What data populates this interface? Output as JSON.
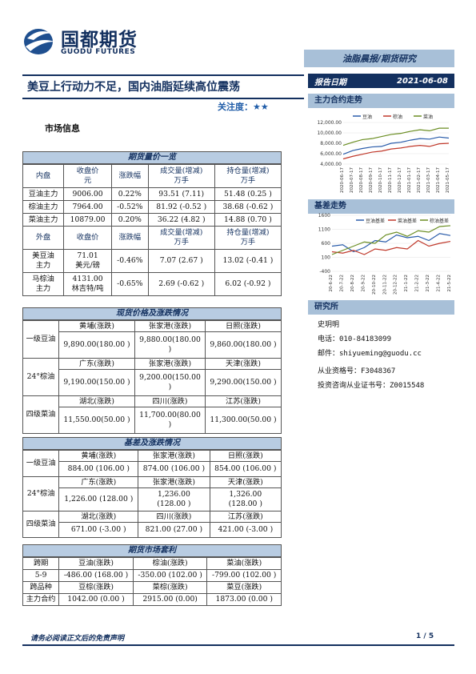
{
  "header": {
    "logo_cn": "国都期货",
    "logo_en": "GUODU FUTURES",
    "report_type": "油脂晨报/期货研究",
    "date_label": "报告日期",
    "date": "2021-06-08",
    "title": "美豆上行动力不足，国内油脂延续高位震荡",
    "attention": "关注度：★★"
  },
  "section": "市场信息",
  "futures": {
    "title": "期货量价一览",
    "head1": [
      "内盘",
      "收盘价\n元",
      "涨跌幅",
      "成交量(增减)\n万手",
      "持仓量(增减)\n万手"
    ],
    "rows1": [
      [
        "豆油主力",
        "9006.00",
        "0.22%",
        "93.51 (7.11)",
        "51.48 (0.25 )"
      ],
      [
        "棕油主力",
        "7964.00",
        "-0.52%",
        "81.92 (-0.52 )",
        "38.68 (-0.62 )"
      ],
      [
        "菜油主力",
        "10879.00",
        "0.20%",
        "36.22 (4.82 )",
        "14.88 (0.70 )"
      ]
    ],
    "head2": [
      "外盘",
      "收盘价",
      "涨跌幅",
      "成交量(增减)\n万手",
      "持仓量(增减)\n万手"
    ],
    "rows2": [
      [
        "美豆油\n主力",
        "71.01\n美元/磅",
        "-0.46%",
        "7.07 (2.67 )",
        "13.02 (-0.41 )"
      ],
      [
        "马棕油\n主力",
        "4131.00\n林吉特/吨",
        "-0.65%",
        "2.69 (-0.62 )",
        "6.02 (-0.92 )"
      ]
    ]
  },
  "spot": {
    "title": "现货价格及涨跌情况",
    "groups": [
      {
        "name": "一级豆油",
        "regions": [
          "黄埔(涨跌)",
          "张家港(涨跌)",
          "日照(涨跌)"
        ],
        "values": [
          "9,890.00(180.00 )",
          "9,880.00(180.00\n)",
          "9,860.00(180.00 )"
        ]
      },
      {
        "name": "24°棕油",
        "regions": [
          "广东(涨跌)",
          "张家港(涨跌)",
          "天津(涨跌)"
        ],
        "values": [
          "9,190.00(150.00 )",
          "9,200.00(150.00\n)",
          "9,290.00(150.00 )"
        ]
      },
      {
        "name": "四级菜油",
        "regions": [
          "湖北(涨跌)",
          "四川(涨跌)",
          "江苏(涨跌)"
        ],
        "values": [
          "11,550.00(50.00 )",
          "11,700.00(80.00\n)",
          "11,300.00(50.00 )"
        ]
      }
    ]
  },
  "basis": {
    "title": "基差及涨跌情况",
    "groups": [
      {
        "name": "一级豆油",
        "regions": [
          "黄埔(涨跌)",
          "张家港(涨跌)",
          "日照(涨跌)"
        ],
        "values": [
          "884.00 (106.00 )",
          "874.00 (106.00 )",
          "854.00 (106.00 )"
        ]
      },
      {
        "name": "24°棕油",
        "regions": [
          "广东(涨跌)",
          "张家港(涨跌)",
          "天津(涨跌)"
        ],
        "values": [
          "1,226.00 (128.00 )",
          "1,236.00\n(128.00 )",
          "1,326.00\n(128.00 )"
        ]
      },
      {
        "name": "四级菜油",
        "regions": [
          "湖北(涨跌)",
          "四川(涨跌)",
          "江苏(涨跌)"
        ],
        "values": [
          "671.00 (-3.00 )",
          "821.00 (27.00 )",
          "421.00 (-3.00 )"
        ]
      }
    ]
  },
  "arb": {
    "title": "期货市场套利",
    "head1": [
      "跨期",
      "豆油(涨跌)",
      "棕油(涨跌)",
      "菜油(涨跌)"
    ],
    "row1": [
      "5-9",
      "-486.00 (168.00 )",
      "-350.00 (102.00 )",
      "-799.00 (102.00 )"
    ],
    "head2": [
      "跨品种",
      "豆棕(涨跌)",
      "菜棕(涨跌)",
      "菜豆(涨跌)"
    ],
    "row2": [
      "主力合约",
      "1042.00    (0.00 )",
      "2915.00    (0.00)",
      "1873.00    (0.00 )"
    ]
  },
  "right": {
    "main_trend_title": "主力合约走势",
    "basis_trend_title": "基差走势",
    "research_title": "研究所",
    "analyst": "史玥明",
    "phone": "电话：010-84183099",
    "email": "邮件：shiyueming@guodu.cc",
    "cert": "从业资格号：F3048367",
    "invest_cert": "投资咨询从业证书号：Z0015548"
  },
  "chart_data": [
    {
      "type": "line",
      "title": "",
      "x": [
        "2020-06-17",
        "2020-07-17",
        "2020-08-17",
        "2020-09-17",
        "2020-10-17",
        "2020-11-17",
        "2020-12-17",
        "2021-01-17",
        "2021-02-17",
        "2021-03-17",
        "2021-04-17",
        "2021-05-17"
      ],
      "ylim": [
        4000,
        12000
      ],
      "yticks": [
        "4,000.00",
        "6,000.00",
        "8,000.00",
        "10,000.00",
        "12,000.00"
      ],
      "series": [
        {
          "name": "豆油",
          "color": "#2a5caa",
          "values": [
            5900,
            6600,
            7000,
            7300,
            7400,
            8000,
            8200,
            8600,
            8900,
            8800,
            9200,
            9000
          ]
        },
        {
          "name": "棕油",
          "color": "#c0392b",
          "values": [
            5000,
            5500,
            5900,
            6300,
            6500,
            6900,
            7100,
            7400,
            7600,
            7400,
            7900,
            8000
          ]
        },
        {
          "name": "菜油",
          "color": "#6b8e23",
          "values": [
            7600,
            8200,
            8700,
            8900,
            9300,
            9700,
            9900,
            10300,
            10600,
            10400,
            10900,
            10900
          ]
        }
      ],
      "legend": "top"
    },
    {
      "type": "line",
      "title": "",
      "x": [
        "20-6-22",
        "20-7-22",
        "20-8-22",
        "20-9-22",
        "20-10-22",
        "20-11-22",
        "20-12-22",
        "21-1-22",
        "21-2-22",
        "21-3-22",
        "21-4-22",
        "21-5-22"
      ],
      "ylim": [
        -400,
        1600
      ],
      "yticks": [
        "-400",
        "100",
        "600",
        "1100",
        "1600"
      ],
      "series": [
        {
          "name": "豆油基差",
          "color": "#2a5caa",
          "values": [
            500,
            550,
            300,
            450,
            700,
            650,
            900,
            800,
            850,
            700,
            950,
            880
          ]
        },
        {
          "name": "菜油基差",
          "color": "#c0392b",
          "values": [
            300,
            250,
            350,
            200,
            400,
            350,
            450,
            400,
            700,
            500,
            600,
            670
          ]
        },
        {
          "name": "棕油基差",
          "color": "#6b8e23",
          "values": [
            200,
            350,
            500,
            650,
            600,
            900,
            1000,
            850,
            1050,
            1000,
            1200,
            1230
          ]
        }
      ],
      "legend": "top"
    }
  ],
  "footer": {
    "disclaimer": "请务必阅读正文后的免责声明",
    "page": "1 / 5"
  }
}
